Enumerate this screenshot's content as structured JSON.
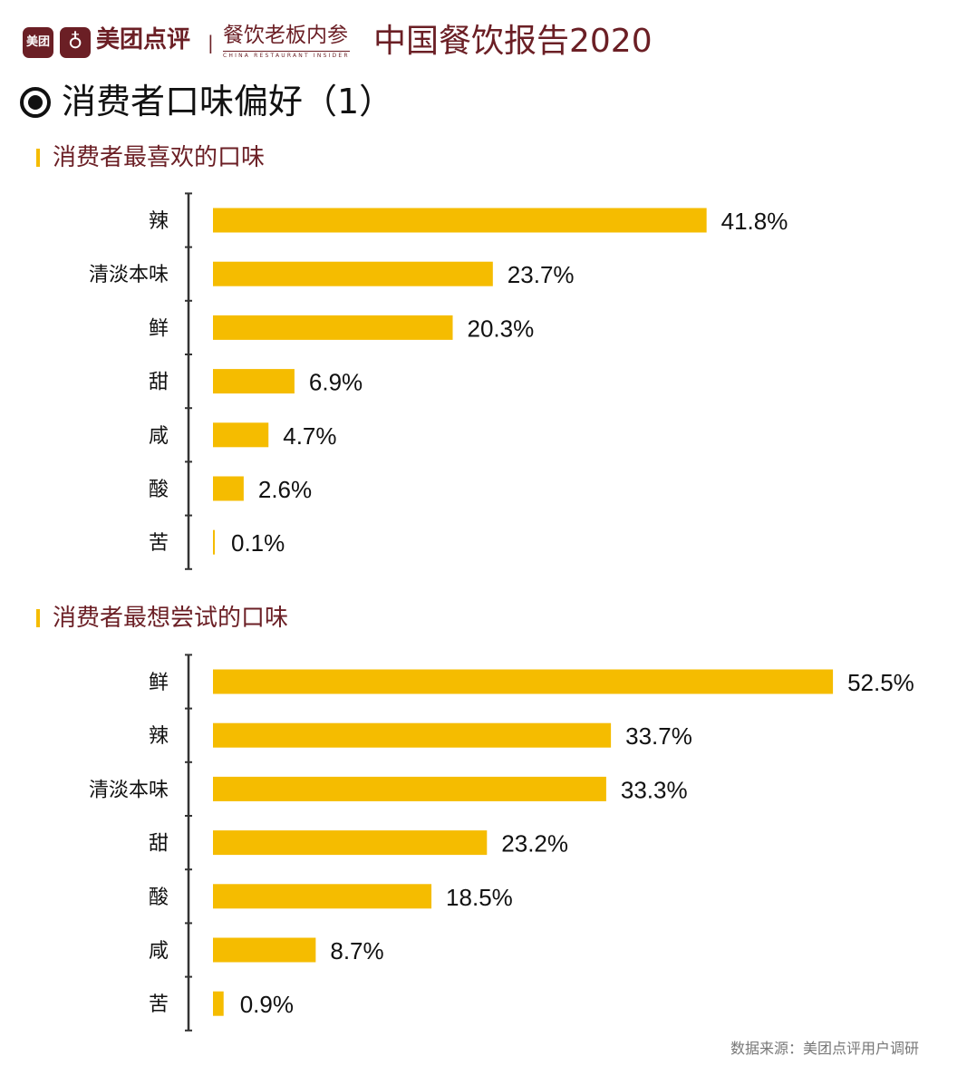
{
  "header": {
    "logo_small": "美团",
    "brand": "美团点评",
    "separator": "|",
    "partner": "餐饮老板内参",
    "partner_en": "CHINA RESTAURANT INSIDER",
    "report_title": "中国餐饮报告2020"
  },
  "page_title": "消费者口味偏好（1）",
  "colors": {
    "bar": "#F5BC00",
    "brand": "#6B1F25",
    "axis": "#333333"
  },
  "chart_data": [
    {
      "type": "bar",
      "orientation": "horizontal",
      "title": "消费者最喜欢的口味",
      "categories": [
        "辣",
        "清淡本味",
        "鲜",
        "甜",
        "咸",
        "酸",
        "苦"
      ],
      "values": [
        41.8,
        23.7,
        20.3,
        6.9,
        4.7,
        2.6,
        0.1
      ],
      "labels": [
        "41.8%",
        "23.7%",
        "20.3%",
        "6.9%",
        "4.7%",
        "2.6%",
        "0.1%"
      ],
      "unit": "%",
      "grid": false
    },
    {
      "type": "bar",
      "orientation": "horizontal",
      "title": "消费者最想尝试的口味",
      "categories": [
        "鲜",
        "辣",
        "清淡本味",
        "甜",
        "酸",
        "咸",
        "苦"
      ],
      "values": [
        52.5,
        33.7,
        33.3,
        23.2,
        18.5,
        8.7,
        0.9
      ],
      "labels": [
        "52.5%",
        "33.7%",
        "33.3%",
        "23.2%",
        "18.5%",
        "8.7%",
        "0.9%"
      ],
      "unit": "%",
      "grid": false
    }
  ],
  "footer": {
    "source": "数据来源：美团点评用户调研"
  }
}
